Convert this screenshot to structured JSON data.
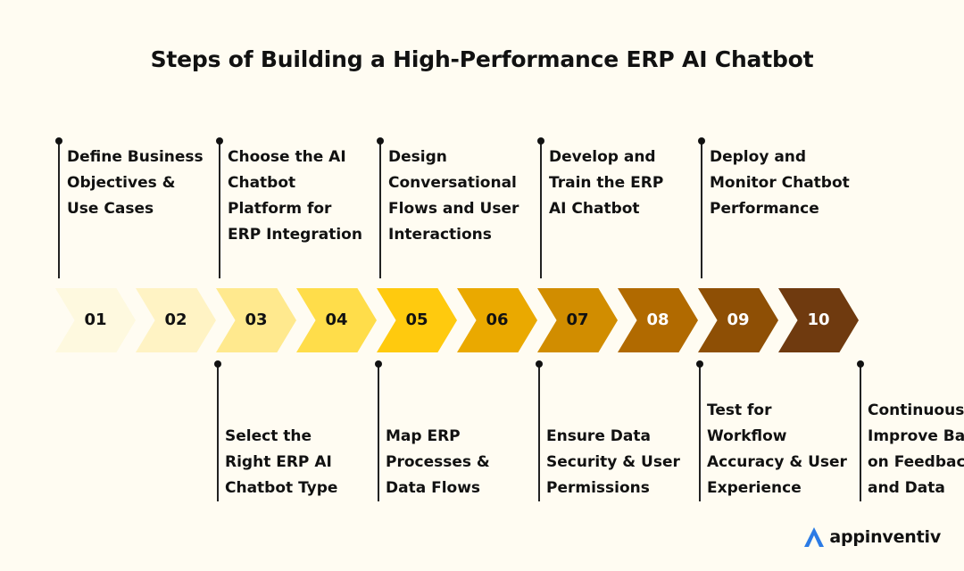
{
  "title": "Steps of Building a High-Performance ERP AI Chatbot",
  "steps": [
    {
      "number": "01",
      "label_lines": [
        "Define Business",
        "Objectives &",
        "Use Cases"
      ],
      "position": "above",
      "color": "#fef9df",
      "text_color": "#111111"
    },
    {
      "number": "02",
      "label_lines": [
        "Select the",
        "Right ERP AI",
        "Chatbot Type"
      ],
      "position": "below",
      "color": "#fff3c4",
      "text_color": "#111111"
    },
    {
      "number": "03",
      "label_lines": [
        "Choose the AI",
        "Chatbot",
        "Platform for",
        "ERP Integration"
      ],
      "position": "above",
      "color": "#ffe98e",
      "text_color": "#111111"
    },
    {
      "number": "04",
      "label_lines": [
        "Map ERP",
        "Processes &",
        "Data Flows"
      ],
      "position": "below",
      "color": "#ffdd4a",
      "text_color": "#111111"
    },
    {
      "number": "05",
      "label_lines": [
        "Design",
        "Conversational",
        "Flows and User",
        "Interactions"
      ],
      "position": "above",
      "color": "#ffca0e",
      "text_color": "#111111"
    },
    {
      "number": "06",
      "label_lines": [
        "Ensure Data",
        "Security & User",
        "Permissions"
      ],
      "position": "below",
      "color": "#eaa900",
      "text_color": "#111111"
    },
    {
      "number": "07",
      "label_lines": [
        "Develop and",
        "Train the ERP",
        "AI Chatbot"
      ],
      "position": "above",
      "color": "#d18d00",
      "text_color": "#111111"
    },
    {
      "number": "08",
      "label_lines": [
        "Test for",
        "Workflow",
        "Accuracy & User",
        "Experience"
      ],
      "position": "below",
      "color": "#b16a00",
      "text_color": "#ffffff"
    },
    {
      "number": "09",
      "label_lines": [
        "Deploy and",
        "Monitor Chatbot",
        "Performance"
      ],
      "position": "above",
      "color": "#8e4f05",
      "text_color": "#ffffff"
    },
    {
      "number": "10",
      "label_lines": [
        "Continuously",
        "Improve Based",
        "on Feedback",
        "and Data"
      ],
      "position": "below",
      "color": "#6f3a0f",
      "text_color": "#ffffff"
    }
  ],
  "brand": {
    "name": "appinventiv",
    "icon": "appinventiv-logo-icon",
    "icon_color": "#2c7be5"
  }
}
